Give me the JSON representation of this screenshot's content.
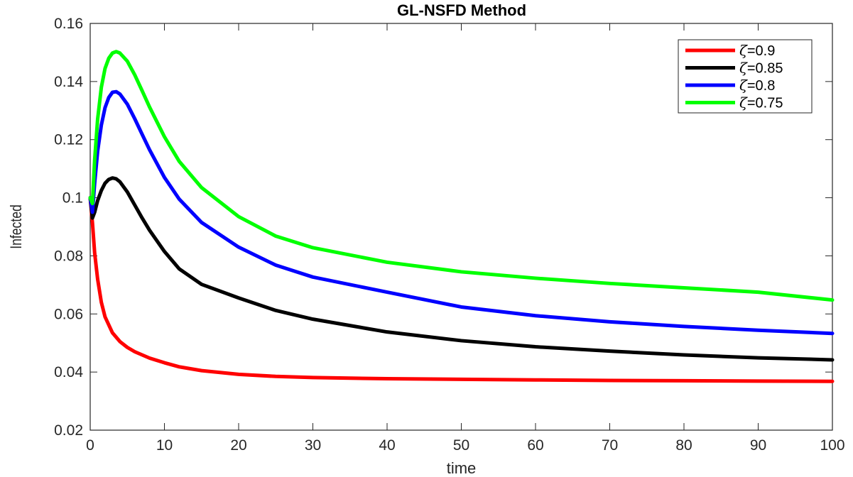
{
  "chart_data": {
    "type": "line",
    "title": "GL-NSFD Method",
    "xlabel": "time",
    "ylabel": "Infected",
    "xlim": [
      0,
      100
    ],
    "ylim": [
      0.02,
      0.16
    ],
    "xticks": [
      0,
      10,
      20,
      30,
      40,
      50,
      60,
      70,
      80,
      90,
      100
    ],
    "xtick_labels": [
      "0",
      "10",
      "20",
      "30",
      "40",
      "50",
      "60",
      "70",
      "80",
      "90",
      "100"
    ],
    "yticks": [
      0.02,
      0.04,
      0.06,
      0.08,
      0.1,
      0.12,
      0.14,
      0.16
    ],
    "ytick_labels": [
      "0.02",
      "0.04",
      "0.06",
      "0.08",
      "0.1",
      "0.12",
      "0.14",
      "0.16"
    ],
    "grid": false,
    "legend_position": "top-right",
    "legend_symbol": "ζ",
    "series": [
      {
        "name": "=0.9",
        "color": "#ff0000",
        "x": [
          0,
          0.3,
          0.6,
          1,
          1.5,
          2,
          3,
          4,
          5,
          6,
          8,
          10,
          12,
          15,
          20,
          25,
          30,
          40,
          50,
          60,
          70,
          80,
          90,
          100
        ],
        "y": [
          0.1,
          0.0915,
          0.081,
          0.072,
          0.064,
          0.059,
          0.0535,
          0.0505,
          0.0485,
          0.047,
          0.0448,
          0.0432,
          0.0418,
          0.0405,
          0.0392,
          0.0385,
          0.0381,
          0.0377,
          0.0375,
          0.0373,
          0.0371,
          0.037,
          0.0369,
          0.0368
        ]
      },
      {
        "name": "=0.85",
        "color": "#000000",
        "x": [
          0,
          0.3,
          0.6,
          1,
          1.5,
          2,
          2.5,
          3,
          3.5,
          4,
          5,
          6,
          7,
          8,
          10,
          12,
          15,
          20,
          25,
          30,
          40,
          50,
          60,
          70,
          80,
          90,
          100
        ],
        "y": [
          0.1,
          0.093,
          0.095,
          0.099,
          0.1025,
          0.105,
          0.1063,
          0.1068,
          0.1065,
          0.1055,
          0.102,
          0.0975,
          0.093,
          0.0888,
          0.0815,
          0.0755,
          0.0702,
          0.0655,
          0.0612,
          0.0582,
          0.0538,
          0.0508,
          0.0487,
          0.0472,
          0.0459,
          0.0449,
          0.0442
        ]
      },
      {
        "name": "=0.8",
        "color": "#0000ff",
        "x": [
          0,
          0.3,
          0.6,
          1,
          1.5,
          2,
          2.5,
          3,
          3.5,
          4,
          5,
          6,
          7,
          8,
          10,
          12,
          15,
          20,
          25,
          30,
          40,
          50,
          60,
          70,
          80,
          90,
          100
        ],
        "y": [
          0.1,
          0.095,
          0.105,
          0.116,
          0.125,
          0.131,
          0.1345,
          0.1363,
          0.1365,
          0.1357,
          0.1322,
          0.1272,
          0.1218,
          0.1165,
          0.107,
          0.0995,
          0.0915,
          0.083,
          0.0768,
          0.0727,
          0.0675,
          0.0624,
          0.0594,
          0.0573,
          0.0557,
          0.0544,
          0.0533
        ]
      },
      {
        "name": "=0.75",
        "color": "#00ff00",
        "x": [
          0,
          0.3,
          0.6,
          1,
          1.5,
          2,
          2.5,
          3,
          3.5,
          4,
          5,
          6,
          7,
          8,
          10,
          12,
          15,
          20,
          25,
          30,
          40,
          50,
          60,
          70,
          80,
          90,
          100
        ],
        "y": [
          0.1,
          0.098,
          0.113,
          0.127,
          0.138,
          0.1445,
          0.148,
          0.1498,
          0.1503,
          0.1498,
          0.147,
          0.1423,
          0.1368,
          0.1312,
          0.121,
          0.1125,
          0.1035,
          0.0935,
          0.0868,
          0.0828,
          0.0778,
          0.0745,
          0.0723,
          0.0705,
          0.069,
          0.0675,
          0.0648
        ]
      }
    ]
  }
}
